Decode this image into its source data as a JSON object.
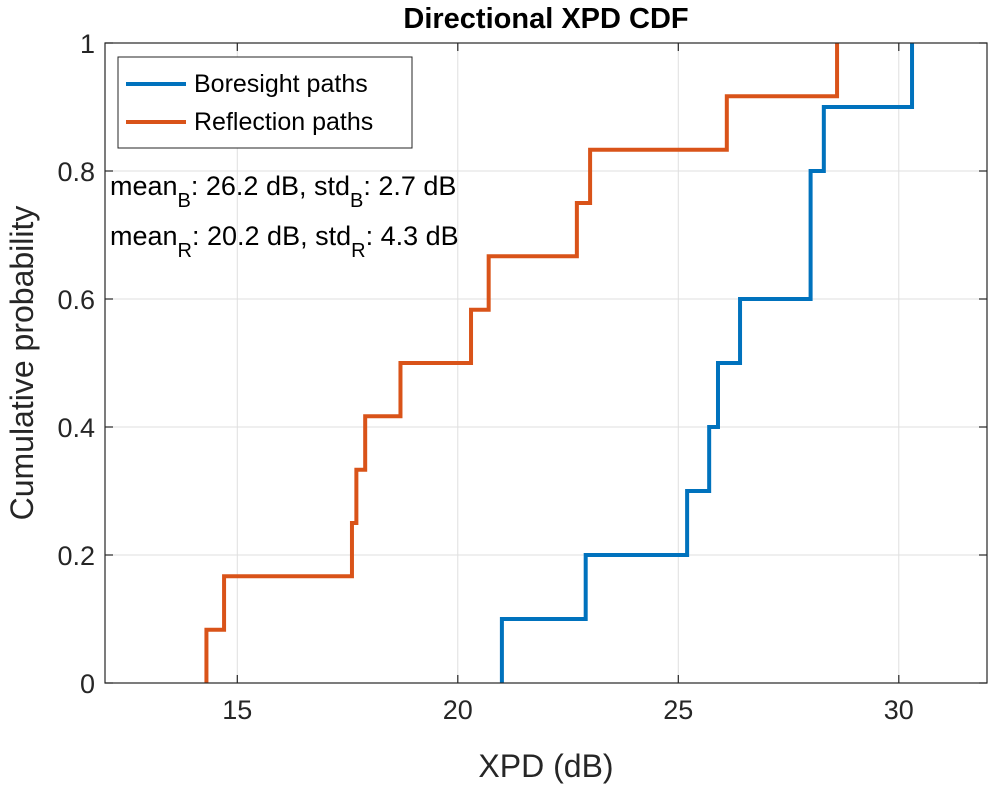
{
  "chart_data": {
    "type": "line",
    "subtype": "empirical-cdf-stairs",
    "title": "Directional XPD CDF",
    "xlabel": "XPD (dB)",
    "ylabel": "Cumulative probability",
    "xlim": [
      12,
      32
    ],
    "ylim": [
      0,
      1
    ],
    "xticks": [
      15,
      20,
      25,
      30
    ],
    "yticks": [
      0,
      0.2,
      0.4,
      0.6,
      0.8,
      1
    ],
    "xtick_labels": [
      "15",
      "20",
      "25",
      "30"
    ],
    "ytick_labels": [
      "0",
      "0.2",
      "0.4",
      "0.6",
      "0.8",
      "1"
    ],
    "grid": true,
    "legend_position": "top-left",
    "series": [
      {
        "name": "Boresight paths",
        "color": "#0072BD",
        "x": [
          21.0,
          22.9,
          25.2,
          25.7,
          25.9,
          26.4,
          28.0,
          28.3,
          30.3
        ],
        "y": [
          0.1,
          0.2,
          0.3,
          0.4,
          0.5,
          0.6,
          0.8,
          0.9,
          1.0
        ]
      },
      {
        "name": "Reflection paths",
        "color": "#D95319",
        "x": [
          14.3,
          14.7,
          17.6,
          17.7,
          17.9,
          18.7,
          20.3,
          20.7,
          22.7,
          23.0,
          26.1,
          28.6
        ],
        "y": [
          0.0833,
          0.1667,
          0.25,
          0.3333,
          0.4167,
          0.5,
          0.5833,
          0.6667,
          0.75,
          0.8333,
          0.9167,
          1.0
        ]
      }
    ],
    "annotations": [
      {
        "prefix": "mean",
        "sub1": "B",
        "mid": ": 26.2 dB, std",
        "sub2": "B",
        "suffix": ": 2.7 dB"
      },
      {
        "prefix": "mean",
        "sub1": "R",
        "mid": ": 20.2 dB, std",
        "sub2": "R",
        "suffix": ": 4.3 dB"
      }
    ]
  }
}
